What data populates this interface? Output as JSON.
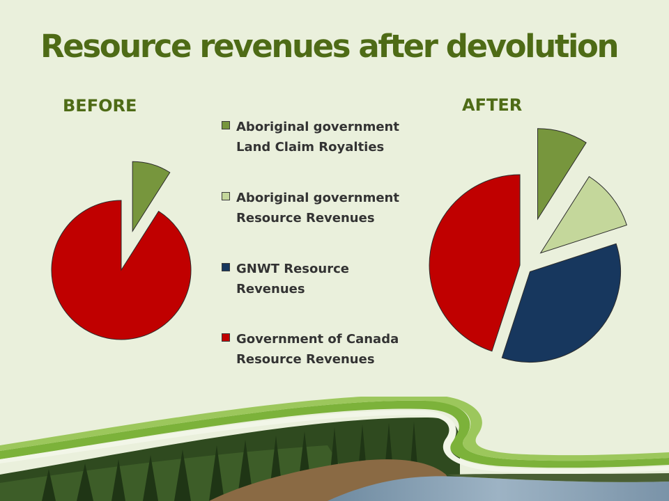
{
  "title": "Resource revenues after devolution",
  "colors": {
    "title": "#4e6b16",
    "background": "#eaf0dc"
  },
  "chart_data": [
    {
      "type": "pie",
      "title": "BEFORE",
      "categories": [
        "Aboriginal government Land Claim Royalties",
        "Government of Canada Resource Revenues"
      ],
      "values": [
        9,
        91
      ],
      "colors": [
        "#77963d",
        "#c00000"
      ],
      "exploded": [
        true,
        false
      ]
    },
    {
      "type": "pie",
      "title": "AFTER",
      "categories": [
        "Aboriginal government Land Claim Royalties",
        "Aboriginal government Resource Revenues",
        "GNWT Resource Revenues",
        "Government of Canada Resource Revenues"
      ],
      "values": [
        9,
        11,
        35,
        45
      ],
      "colors": [
        "#77963d",
        "#c4d79b",
        "#17375e",
        "#c00000"
      ],
      "exploded": [
        true,
        true,
        true,
        true
      ]
    }
  ],
  "legend": {
    "placement": "center",
    "items": [
      {
        "label": "Aboriginal government Land Claim Royalties",
        "color": "#77963d"
      },
      {
        "label": "Aboriginal government Resource Revenues",
        "color": "#c4d79b"
      },
      {
        "label": "GNWT Resource Revenues",
        "color": "#17375e"
      },
      {
        "label": "Government of Canada Resource Revenues",
        "color": "#c00000"
      }
    ]
  }
}
